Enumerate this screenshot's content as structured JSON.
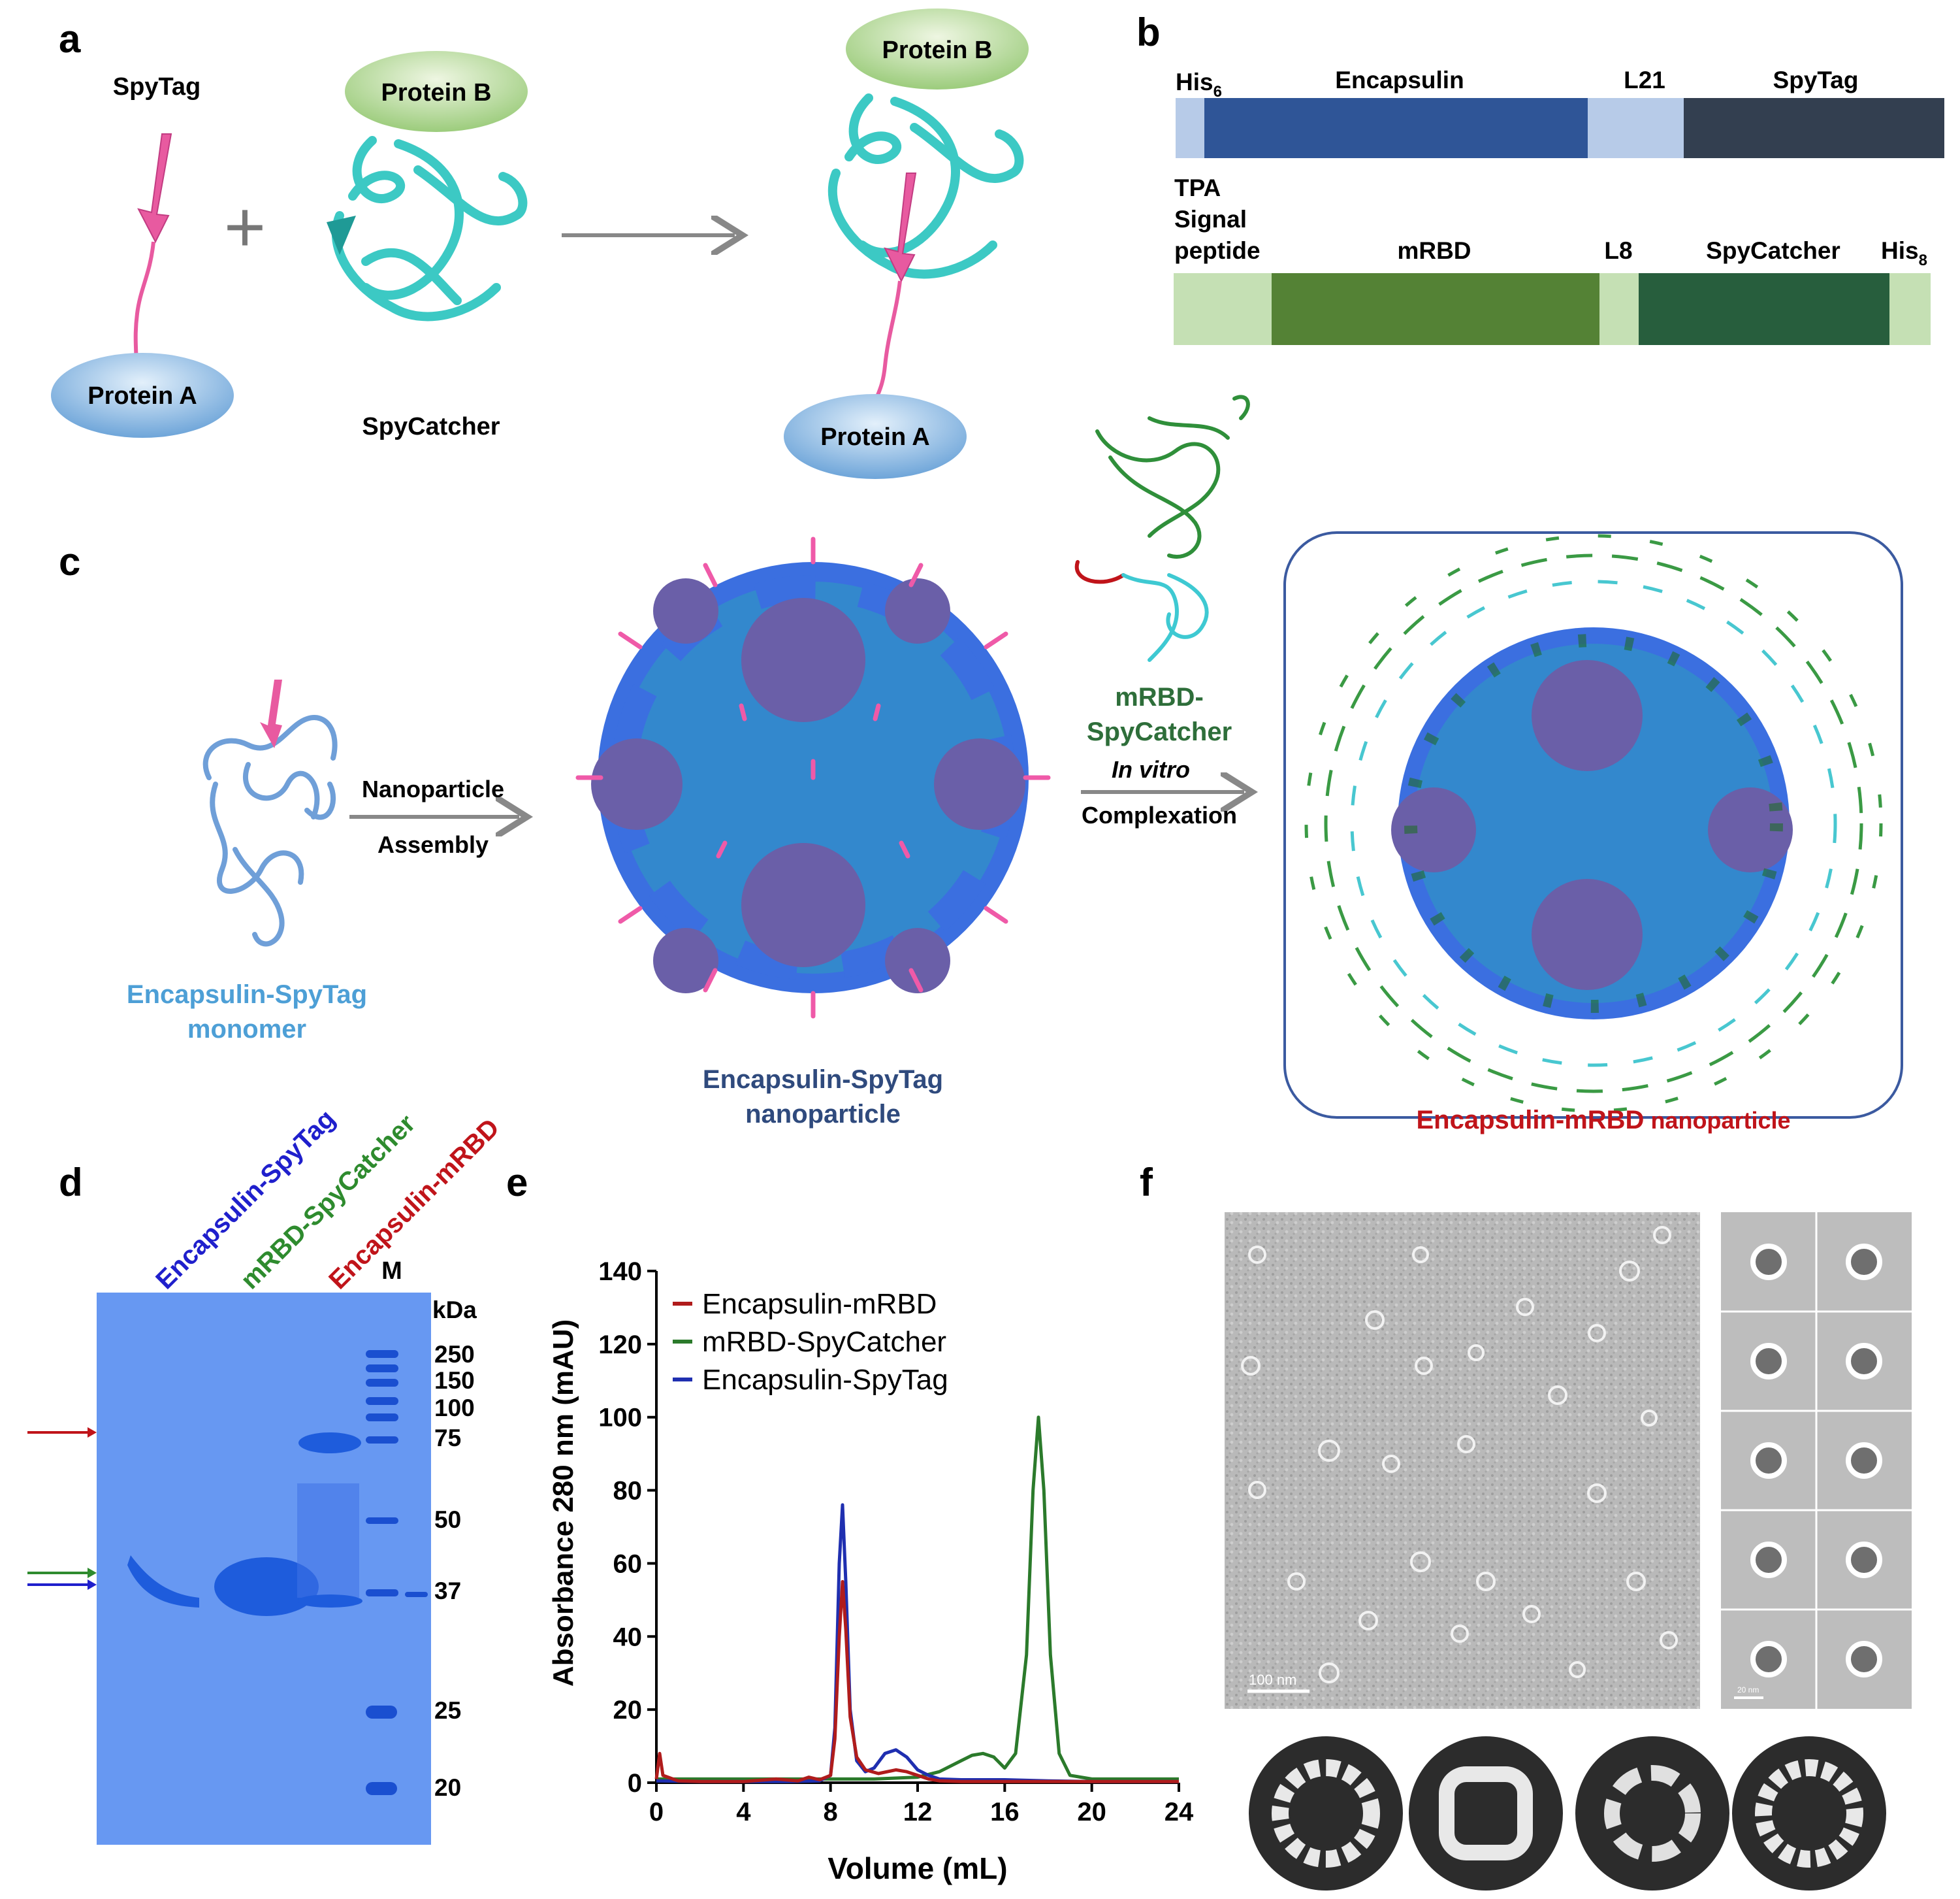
{
  "panels": {
    "a": "a",
    "b": "b",
    "c": "c",
    "d": "d",
    "e": "e",
    "f": "f"
  },
  "panel_a": {
    "spytag": "SpyTag",
    "protein_b": "Protein B",
    "protein_a": "Protein A",
    "plus": "+",
    "spycatcher": "SpyCatcher"
  },
  "panel_b": {
    "row1": {
      "his_base": "His",
      "his_sub": "6",
      "encapsulin": "Encapsulin",
      "l21": "L21",
      "spytag": "SpyTag"
    },
    "row2": {
      "tpa1": "TPA",
      "tpa2": "Signal",
      "tpa3": "peptide",
      "mrbd": "mRBD",
      "l8": "L8",
      "spycatcher": "SpyCatcher",
      "his_base": "His",
      "his_sub": "8"
    },
    "colors": {
      "his": "#b7cbe8",
      "encapsulin": "#2f5597",
      "l21": "#b7cbe8",
      "spytag": "#333f50",
      "tpa": "#c5e0b4",
      "mrbd": "#548235",
      "l8": "#c5e0b4",
      "spycatcher": "#275e3d",
      "his8": "#c5e0b4"
    }
  },
  "panel_c": {
    "monomer1": "Encapsulin-SpyTag",
    "monomer2": "monomer",
    "step1a": "Nanoparticle",
    "step1b": "Assembly",
    "np1": "Encapsulin-SpyTag",
    "np2": "nanoparticle",
    "mrbd1": "mRBD-",
    "mrbd2": "SpyCatcher",
    "step2a": "In vitro",
    "step2b": "Complexation",
    "final_bold": "Encapsulin-mRBD",
    "final_rest": " nanoparticle"
  },
  "panel_d": {
    "lanes": [
      "Encapsulin-SpyTag",
      "mRBD-SpyCatcher",
      "Encapsulin-mRBD"
    ],
    "lane_colors": [
      "#1f1fcc",
      "#2e8b2e",
      "#c0141a"
    ],
    "marker": "M",
    "unit": "kDa",
    "ladder": [
      "250",
      "150",
      "100",
      "75",
      "50",
      "37",
      "25",
      "20"
    ]
  },
  "panel_e": {
    "legend": [
      "Encapsulin-mRBD",
      "mRBD-SpyCatcher",
      "Encapsulin-SpyTag"
    ]
  },
  "panel_f": {
    "scale_large": "100 nm",
    "scale_small": "20 nm"
  },
  "chart_data": {
    "type": "line",
    "xlabel": "Volume (mL)",
    "ylabel": "Absorbance 280 nm (mAU)",
    "xlim": [
      0,
      24
    ],
    "ylim": [
      0,
      140
    ],
    "xticks": [
      0,
      4,
      8,
      12,
      16,
      20,
      24
    ],
    "yticks": [
      0,
      20,
      40,
      60,
      80,
      100,
      120,
      140
    ],
    "grid": false,
    "legend_position": "top-left",
    "series": [
      {
        "name": "Encapsulin-mRBD",
        "color": "#b01c1c",
        "x": [
          0,
          0.15,
          0.3,
          1,
          2,
          4,
          5.5,
          6.5,
          7,
          7.5,
          8,
          8.2,
          8.4,
          8.55,
          8.7,
          8.9,
          9.2,
          9.6,
          10.2,
          11,
          11.5,
          12,
          12.5,
          13,
          14,
          16,
          20,
          24
        ],
        "y": [
          1,
          8,
          2,
          0.5,
          0.3,
          0.3,
          1,
          0.5,
          1.5,
          0.8,
          2,
          12,
          40,
          55,
          42,
          18,
          7,
          3.5,
          2.5,
          3.5,
          3,
          2,
          1,
          0.5,
          0.3,
          0.3,
          0.3,
          0.3
        ]
      },
      {
        "name": "mRBD-SpyCatcher",
        "color": "#2b7a2b",
        "x": [
          0,
          2,
          4,
          6,
          8,
          10,
          12,
          13,
          14,
          14.5,
          15,
          15.5,
          16,
          16.5,
          17,
          17.3,
          17.55,
          17.8,
          18.1,
          18.5,
          19,
          20,
          24
        ],
        "y": [
          1,
          1,
          1,
          1,
          1,
          1,
          1.5,
          3,
          6,
          7.5,
          8,
          7,
          4,
          8,
          35,
          80,
          100,
          80,
          35,
          8,
          2,
          1,
          1
        ]
      },
      {
        "name": "Encapsulin-SpyTag",
        "color": "#1f2fb0",
        "x": [
          0,
          2,
          4,
          6,
          7.5,
          8,
          8.2,
          8.4,
          8.55,
          8.7,
          8.9,
          9.2,
          9.6,
          10,
          10.5,
          11,
          11.5,
          12,
          12.5,
          13,
          14,
          16,
          18,
          20,
          24
        ],
        "y": [
          0.5,
          0.3,
          0.3,
          0.3,
          0.5,
          2,
          15,
          60,
          76,
          55,
          20,
          6,
          3,
          4,
          8,
          9,
          7,
          3.5,
          2,
          1,
          0.8,
          0.8,
          0.5,
          0.3,
          0.3
        ]
      }
    ]
  }
}
